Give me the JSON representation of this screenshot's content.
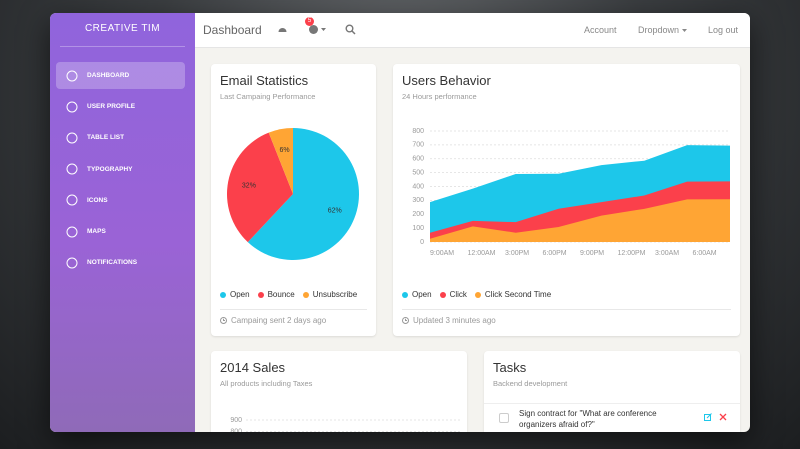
{
  "sidebar": {
    "brand": "CREATIVE TIM",
    "items": [
      "DASHBOARD",
      "USER PROFILE",
      "TABLE LIST",
      "TYPOGRAPHY",
      "ICONS",
      "MAPS",
      "NOTIFICATIONS"
    ],
    "active": 0
  },
  "navbar": {
    "title": "Dashboard",
    "badge": 5,
    "links": [
      "Account",
      "Dropdown",
      "Log out"
    ]
  },
  "chart_data": [
    {
      "type": "pie",
      "title": "Email Statistics",
      "subtitle": "Last Campaing Performance",
      "categories": [
        "Open",
        "Bounce",
        "Unsubscribe"
      ],
      "values": [
        62,
        32,
        6
      ],
      "value_labels": [
        "62%",
        "32%",
        "6%"
      ],
      "colors": [
        "#1dc7ea",
        "#fb404b",
        "#ffa534"
      ],
      "footer": "Campaing sent 2 days ago"
    },
    {
      "type": "area",
      "title": "Users Behavior",
      "subtitle": "24 Hours performance",
      "categories": [
        "9:00AM",
        "12:00AM",
        "3:00PM",
        "6:00PM",
        "9:00PM",
        "12:00PM",
        "3:00AM",
        "6:00AM"
      ],
      "series": [
        {
          "name": "Open",
          "color": "#1dc7ea",
          "values": [
            287,
            385,
            490,
            492,
            554,
            586,
            698,
            695
          ]
        },
        {
          "name": "Click",
          "color": "#fb404b",
          "values": [
            67,
            152,
            143,
            240,
            287,
            335,
            435,
            437
          ]
        },
        {
          "name": "Click Second Time",
          "color": "#ffa534",
          "values": [
            23,
            113,
            67,
            108,
            190,
            239,
            307,
            308
          ]
        }
      ],
      "ylim": [
        0,
        800
      ],
      "yticks": [
        0,
        100,
        200,
        300,
        400,
        500,
        600,
        700,
        800
      ],
      "grid": true,
      "footer": "Updated 3 minutes ago"
    },
    {
      "type": "bar",
      "title": "2014 Sales",
      "subtitle": "All products including Taxes",
      "yticks": [
        900,
        800
      ],
      "grid": true
    }
  ],
  "tasks": {
    "title": "Tasks",
    "subtitle": "Backend development",
    "items": [
      "Sign contract for \"What are conference organizers afraid of?\""
    ]
  }
}
